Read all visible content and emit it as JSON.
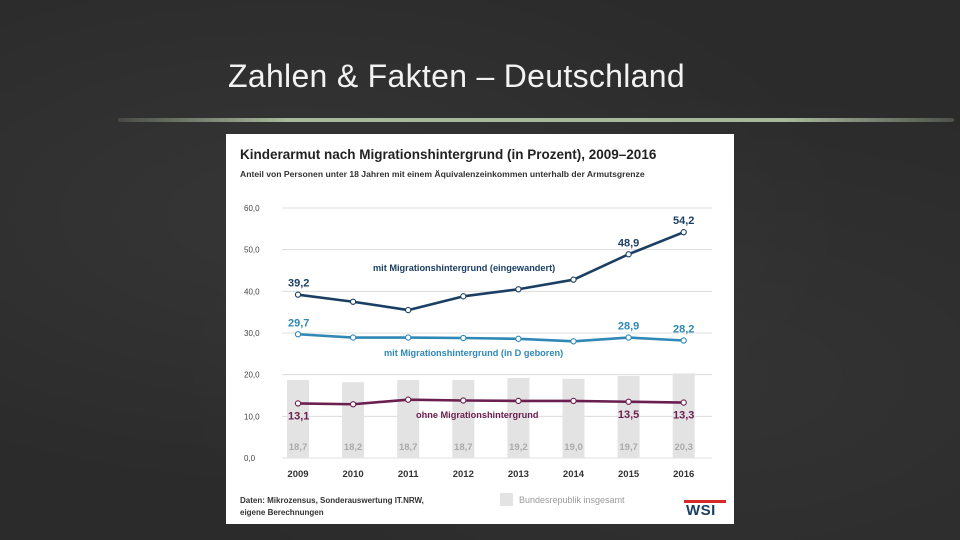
{
  "slide": {
    "title": "Zahlen & Fakten – Deutschland"
  },
  "colors": {
    "eingewandert": "#1b3f63",
    "in_d_geboren": "#2f88b5",
    "ohne": "#6b1f50",
    "bundesrepublik_bar": "#e3e3e3"
  },
  "chart_data": {
    "type": "line",
    "title": "Kinderarmut nach Migrationshintergrund (in Prozent), 2009–2016",
    "subtitle": "Anteil von Personen unter 18 Jahren mit einem Äquivalenzeinkommen unterhalb der Armutsgrenze",
    "xlabel": "",
    "ylabel": "",
    "ylim": [
      0,
      60
    ],
    "yticks": [
      "60,0",
      "50,0",
      "40,0",
      "30,0",
      "20,0",
      "10,0",
      "0,0"
    ],
    "categories": [
      "2009",
      "2010",
      "2011",
      "2012",
      "2013",
      "2014",
      "2015",
      "2016"
    ],
    "grid": true,
    "series": [
      {
        "name": "mit Migrationshintergrund (eingewandert)",
        "type": "line",
        "values": [
          39.2,
          37.5,
          35.5,
          38.8,
          40.5,
          42.8,
          48.9,
          54.2
        ],
        "value_labels": [
          "39,2",
          "",
          "",
          "",
          "",
          "",
          "48,9",
          "54,2"
        ]
      },
      {
        "name": "mit Migrationshintergrund (in D geboren)",
        "type": "line",
        "values": [
          29.7,
          28.9,
          28.9,
          28.8,
          28.6,
          28.0,
          28.9,
          28.2
        ],
        "value_labels": [
          "29,7",
          "",
          "",
          "",
          "",
          "",
          "28,9",
          "28,2"
        ]
      },
      {
        "name": "ohne Migrationshintergrund",
        "type": "line",
        "values": [
          13.1,
          12.9,
          14.0,
          13.8,
          13.7,
          13.7,
          13.5,
          13.3
        ],
        "value_labels": [
          "13,1",
          "",
          "",
          "",
          "",
          "",
          "13,5",
          "13,3"
        ]
      },
      {
        "name": "Bundesrepublik insgesamt",
        "type": "bar",
        "values": [
          18.7,
          18.2,
          18.7,
          18.7,
          19.2,
          19.0,
          19.7,
          20.3
        ],
        "value_labels": [
          "18,7",
          "18,2",
          "18,7",
          "18,7",
          "19,2",
          "19,0",
          "19,7",
          "20,3"
        ]
      }
    ],
    "source": "Daten: Mikrozensus, Sonderauswertung IT.NRW, eigene Berechnungen",
    "legend": "Bundesrepublik insgesamt",
    "logo": "WSI"
  }
}
